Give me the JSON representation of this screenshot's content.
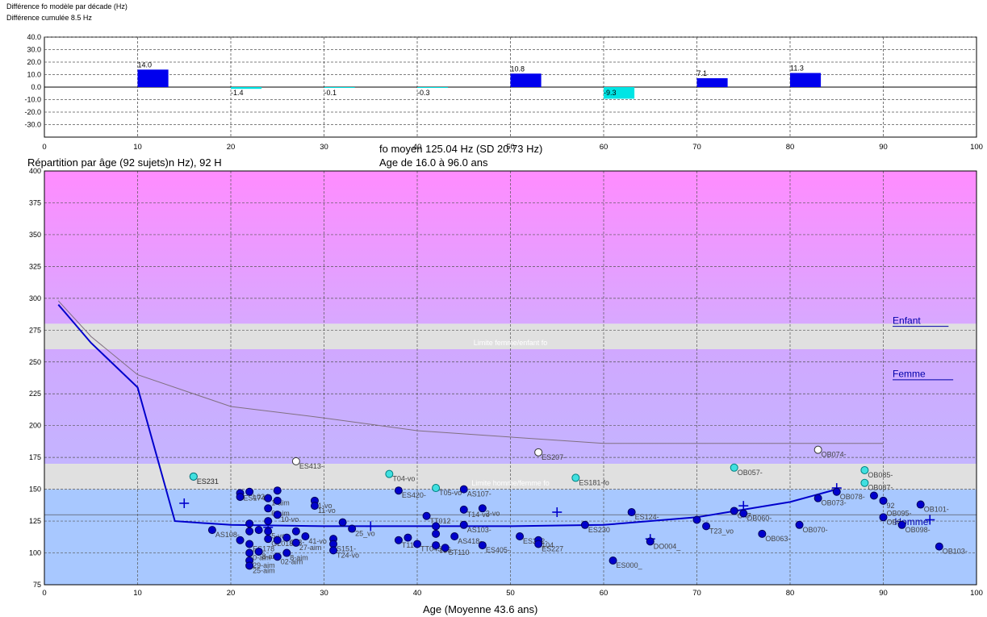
{
  "top_panel": {
    "title": "Différence fo modèle par décade (Hz)",
    "subtitle": "Différence cumulée 8.5 Hz"
  },
  "main_panel": {
    "title_left": "Répartition par âge (92 sujets)n Hz), 92 H",
    "title_center_1": "fo moyen 125.04 Hz (SD 20.73 Hz)",
    "title_center_2": "Age de 16.0 à 96.0 ans",
    "band_enfant": "Enfant",
    "band_femme": "Femme",
    "band_homme": "Homme",
    "limit_femme_enfant": "Limite femme/enfant fo",
    "limit_homme_femme": "Limite homme/femme fo"
  },
  "colors": {
    "pink": "#ff99ff",
    "purple_light": "#d0a8ff",
    "lavender": "#c4b4ff",
    "blue_band": "#a8c8ff",
    "gray_band": "#e0e0e0",
    "bar_positive": "#0000ee",
    "bar_negative": "#00e5e5",
    "line_male": "#0000cc",
    "line_female": "#807080",
    "dot_blue": "#0000cc",
    "dot_cyan": "#40e0e0",
    "dot_white": "#ffffff"
  },
  "chart_data": [
    {
      "type": "bar",
      "title": "Différence fo modèle par décade (Hz)",
      "subtitle": "Différence cumulée 8.5 Hz",
      "xlim": [
        0,
        100
      ],
      "ylim": [
        -40,
        40
      ],
      "xticks": [
        "0",
        "10",
        "20",
        "30",
        "40",
        "50",
        "60",
        "70",
        "80",
        "90",
        "100"
      ],
      "yticks": [
        "40.0",
        "30.0",
        "20.0",
        "10.0",
        "0.0",
        "-10.0",
        "-20.0",
        "-30.0"
      ],
      "bars": [
        {
          "x": 10,
          "value": 14.0,
          "label": "14.0"
        },
        {
          "x": 20,
          "value": -1.4,
          "label": "-1.4"
        },
        {
          "x": 30,
          "value": -0.1,
          "label": "-0.1"
        },
        {
          "x": 40,
          "value": -0.3,
          "label": "-0.3"
        },
        {
          "x": 50,
          "value": 10.8,
          "label": "10.8"
        },
        {
          "x": 60,
          "value": -9.3,
          "label": "-9.3"
        },
        {
          "x": 70,
          "value": 7.1,
          "label": "7.1"
        },
        {
          "x": 80,
          "value": 11.3,
          "label": "11.3"
        }
      ]
    },
    {
      "type": "scatter",
      "title": "fo moyen 125.04 Hz (SD 20.73 Hz)",
      "xlabel": "Age (Moyenne 43.6 ans)",
      "xlim": [
        0,
        100
      ],
      "ylim": [
        75,
        400
      ],
      "xticks": [
        "0",
        "10",
        "20",
        "30",
        "40",
        "50",
        "60",
        "70",
        "80",
        "90",
        "100"
      ],
      "yticks": [
        "75",
        "100",
        "125",
        "150",
        "175",
        "200",
        "225",
        "250",
        "275",
        "300",
        "325",
        "350",
        "375",
        "400"
      ],
      "bands": [
        {
          "from": 280,
          "to": 400,
          "color": "pink"
        },
        {
          "from": 260,
          "to": 280,
          "color": "gray"
        },
        {
          "from": 170,
          "to": 260,
          "color": "purple"
        },
        {
          "from": 150,
          "to": 170,
          "color": "gray"
        },
        {
          "from": 75,
          "to": 150,
          "color": "blue"
        }
      ],
      "male_curve": [
        [
          1.5,
          295
        ],
        [
          5,
          265
        ],
        [
          10,
          230
        ],
        [
          14,
          125
        ],
        [
          20,
          122
        ],
        [
          30,
          121
        ],
        [
          40,
          121
        ],
        [
          50,
          121
        ],
        [
          60,
          122
        ],
        [
          70,
          128
        ],
        [
          80,
          140
        ],
        [
          85,
          150
        ]
      ],
      "female_curve": [
        [
          1.5,
          298
        ],
        [
          5,
          270
        ],
        [
          10,
          240
        ],
        [
          20,
          215
        ],
        [
          30,
          206
        ],
        [
          40,
          196
        ],
        [
          50,
          191
        ],
        [
          60,
          186
        ],
        [
          70,
          186
        ],
        [
          80,
          186
        ],
        [
          90,
          186
        ]
      ],
      "crosses": [
        [
          15,
          139
        ],
        [
          24,
          120
        ],
        [
          35,
          121
        ],
        [
          55,
          132
        ],
        [
          65,
          111
        ],
        [
          75,
          137
        ],
        [
          85,
          151
        ],
        [
          95,
          126
        ]
      ],
      "points_blue": [
        {
          "x": 16,
          "y": 160,
          "label": "ES231"
        },
        {
          "x": 18,
          "y": 118,
          "label": "AS108-"
        },
        {
          "x": 21,
          "y": 147,
          "label": "ES174"
        },
        {
          "x": 21,
          "y": 144,
          "label": ""
        },
        {
          "x": 21,
          "y": 110,
          "label": ""
        },
        {
          "x": 22,
          "y": 148,
          "label": "L024"
        },
        {
          "x": 22,
          "y": 123,
          "label": ""
        },
        {
          "x": 22,
          "y": 117,
          "label": ""
        },
        {
          "x": 22,
          "y": 107,
          "label": "ES178"
        },
        {
          "x": 22,
          "y": 100,
          "label": "0-aim"
        },
        {
          "x": 22,
          "y": 94,
          "label": "29-aim"
        },
        {
          "x": 22,
          "y": 90,
          "label": "25-aim"
        },
        {
          "x": 23,
          "y": 118,
          "label": ""
        },
        {
          "x": 23,
          "y": 101,
          "label": "8-aim"
        },
        {
          "x": 24,
          "y": 143,
          "label": "1-aim"
        },
        {
          "x": 24,
          "y": 135,
          "label": "6-aim"
        },
        {
          "x": 24,
          "y": 125,
          "label": ""
        },
        {
          "x": 24,
          "y": 117,
          "label": "5-vo"
        },
        {
          "x": 24,
          "y": 111,
          "label": "GL018"
        },
        {
          "x": 25,
          "y": 149,
          "label": ""
        },
        {
          "x": 25,
          "y": 141,
          "label": ""
        },
        {
          "x": 25,
          "y": 130,
          "label": "10-vo"
        },
        {
          "x": 25,
          "y": 110,
          "label": ""
        },
        {
          "x": 25,
          "y": 97,
          "label": "02-aim"
        },
        {
          "x": 26,
          "y": 100,
          "label": "8-aim"
        },
        {
          "x": 26,
          "y": 112,
          "label": "013-"
        },
        {
          "x": 27,
          "y": 108,
          "label": "27-aim"
        },
        {
          "x": 27,
          "y": 117,
          "label": ""
        },
        {
          "x": 28,
          "y": 113,
          "label": "41-vo"
        },
        {
          "x": 29,
          "y": 141,
          "label": "1-vo"
        },
        {
          "x": 29,
          "y": 137,
          "label": "11-vo"
        },
        {
          "x": 31,
          "y": 111,
          "label": ""
        },
        {
          "x": 31,
          "y": 107,
          "label": "S151-"
        },
        {
          "x": 31,
          "y": 102,
          "label": "T24-vo"
        },
        {
          "x": 32,
          "y": 124,
          "label": ""
        },
        {
          "x": 33,
          "y": 119,
          "label": "25_vo"
        },
        {
          "x": 38,
          "y": 149,
          "label": "ES420-"
        },
        {
          "x": 38,
          "y": 110,
          "label": "T11"
        },
        {
          "x": 39,
          "y": 112,
          "label": ""
        },
        {
          "x": 40,
          "y": 107,
          "label": "TT045"
        },
        {
          "x": 41,
          "y": 129,
          "label": "TT012"
        },
        {
          "x": 42,
          "y": 121,
          "label": ""
        },
        {
          "x": 42,
          "y": 115,
          "label": ""
        },
        {
          "x": 42,
          "y": 106,
          "label": "126-"
        },
        {
          "x": 43,
          "y": 104,
          "label": "ST110"
        },
        {
          "x": 44,
          "y": 113,
          "label": "AS418-"
        },
        {
          "x": 45,
          "y": 150,
          "label": "AS107-"
        },
        {
          "x": 45,
          "y": 134,
          "label": "T14-vo"
        },
        {
          "x": 45,
          "y": 122,
          "label": "AS103-"
        },
        {
          "x": 47,
          "y": 135,
          "label": "3-vo"
        },
        {
          "x": 47,
          "y": 106,
          "label": "ES405-"
        },
        {
          "x": 51,
          "y": 113,
          "label": "ES252-"
        },
        {
          "x": 53,
          "y": 110,
          "label": "104"
        },
        {
          "x": 53,
          "y": 107,
          "label": "ES227"
        },
        {
          "x": 58,
          "y": 122,
          "label": "ES230"
        },
        {
          "x": 61,
          "y": 94,
          "label": "ES000_"
        },
        {
          "x": 63,
          "y": 132,
          "label": "ES124-"
        },
        {
          "x": 65,
          "y": 109,
          "label": "DO004_"
        },
        {
          "x": 70,
          "y": 126,
          "label": ""
        },
        {
          "x": 71,
          "y": 121,
          "label": "T23_vo"
        },
        {
          "x": 74,
          "y": 133,
          "label": "O47"
        },
        {
          "x": 75,
          "y": 131,
          "label": "OB060-"
        },
        {
          "x": 77,
          "y": 115,
          "label": "OB063-"
        },
        {
          "x": 81,
          "y": 122,
          "label": "OB070-"
        },
        {
          "x": 83,
          "y": 143,
          "label": "OB073-"
        },
        {
          "x": 85,
          "y": 148,
          "label": "OB078-"
        },
        {
          "x": 89,
          "y": 145,
          "label": ""
        },
        {
          "x": 90,
          "y": 141,
          "label": "92"
        },
        {
          "x": 90,
          "y": 128,
          "label": "OB0"
        },
        {
          "x": 92,
          "y": 122,
          "label": "OB098-"
        },
        {
          "x": 94,
          "y": 138,
          "label": "OB101-"
        },
        {
          "x": 96,
          "y": 105,
          "label": "OB103-"
        }
      ],
      "points_cyan": [
        {
          "x": 16,
          "y": 160,
          "label": "ES231"
        },
        {
          "x": 37,
          "y": 162,
          "label": "T04-vo"
        },
        {
          "x": 42,
          "y": 151,
          "label": "T05-vo"
        },
        {
          "x": 57,
          "y": 159,
          "label": "ES181-fo"
        },
        {
          "x": 74,
          "y": 167,
          "label": "OB057-"
        },
        {
          "x": 88,
          "y": 165,
          "label": "OB085-"
        },
        {
          "x": 88,
          "y": 155,
          "label": "OB087-"
        }
      ],
      "points_white": [
        {
          "x": 27,
          "y": 172,
          "label": "ES413-"
        },
        {
          "x": 53,
          "y": 179,
          "label": "ES207-"
        },
        {
          "x": 83,
          "y": 181,
          "label": "OB074-"
        }
      ],
      "extra_labels": [
        {
          "x": 90,
          "y": 135,
          "label": "OB095-"
        }
      ]
    }
  ]
}
